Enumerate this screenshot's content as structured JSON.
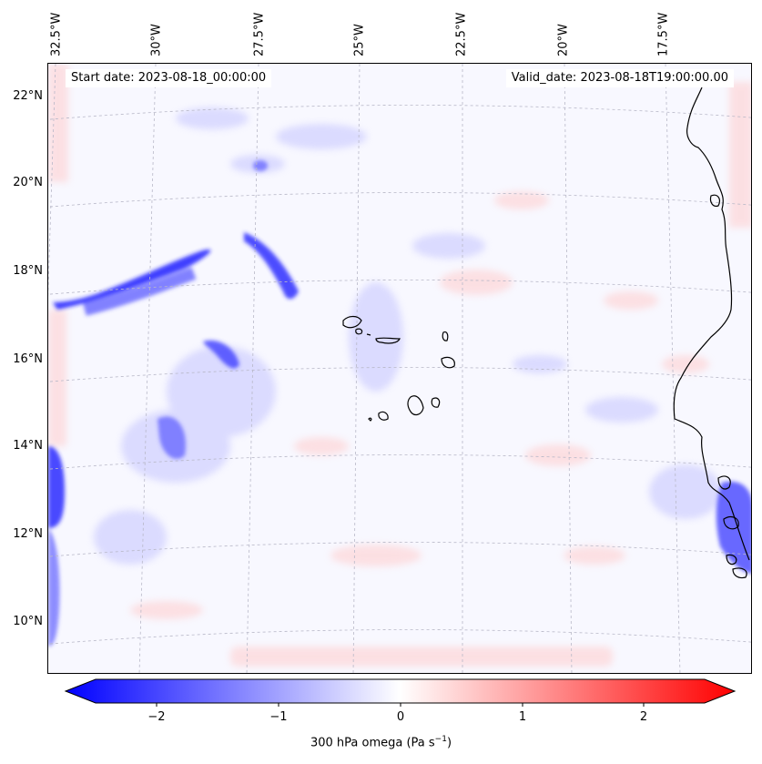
{
  "map": {
    "lon_labels": [
      "32.5°W",
      "30°W",
      "27.5°W",
      "25°W",
      "22.5°W",
      "20°W",
      "17.5°W"
    ],
    "lat_labels": [
      "22°N",
      "20°N",
      "18°N",
      "16°N",
      "14°N",
      "12°N",
      "10°N"
    ],
    "start_date": "Start date: 2023-08-18_00:00:00",
    "valid_date": "Valid_date: 2023-08-18T19:00:00.00"
  },
  "colorbar": {
    "ticks": [
      "−2",
      "−1",
      "0",
      "1",
      "2"
    ],
    "label_main": "300 hPa omega (Pa s",
    "label_exp": "−1",
    "label_close": ")",
    "min": -2.5,
    "max": 2.5,
    "colormap": "bwr",
    "color_low": "#0000ff",
    "color_mid": "#ffffff",
    "color_high": "#ff0000"
  }
}
